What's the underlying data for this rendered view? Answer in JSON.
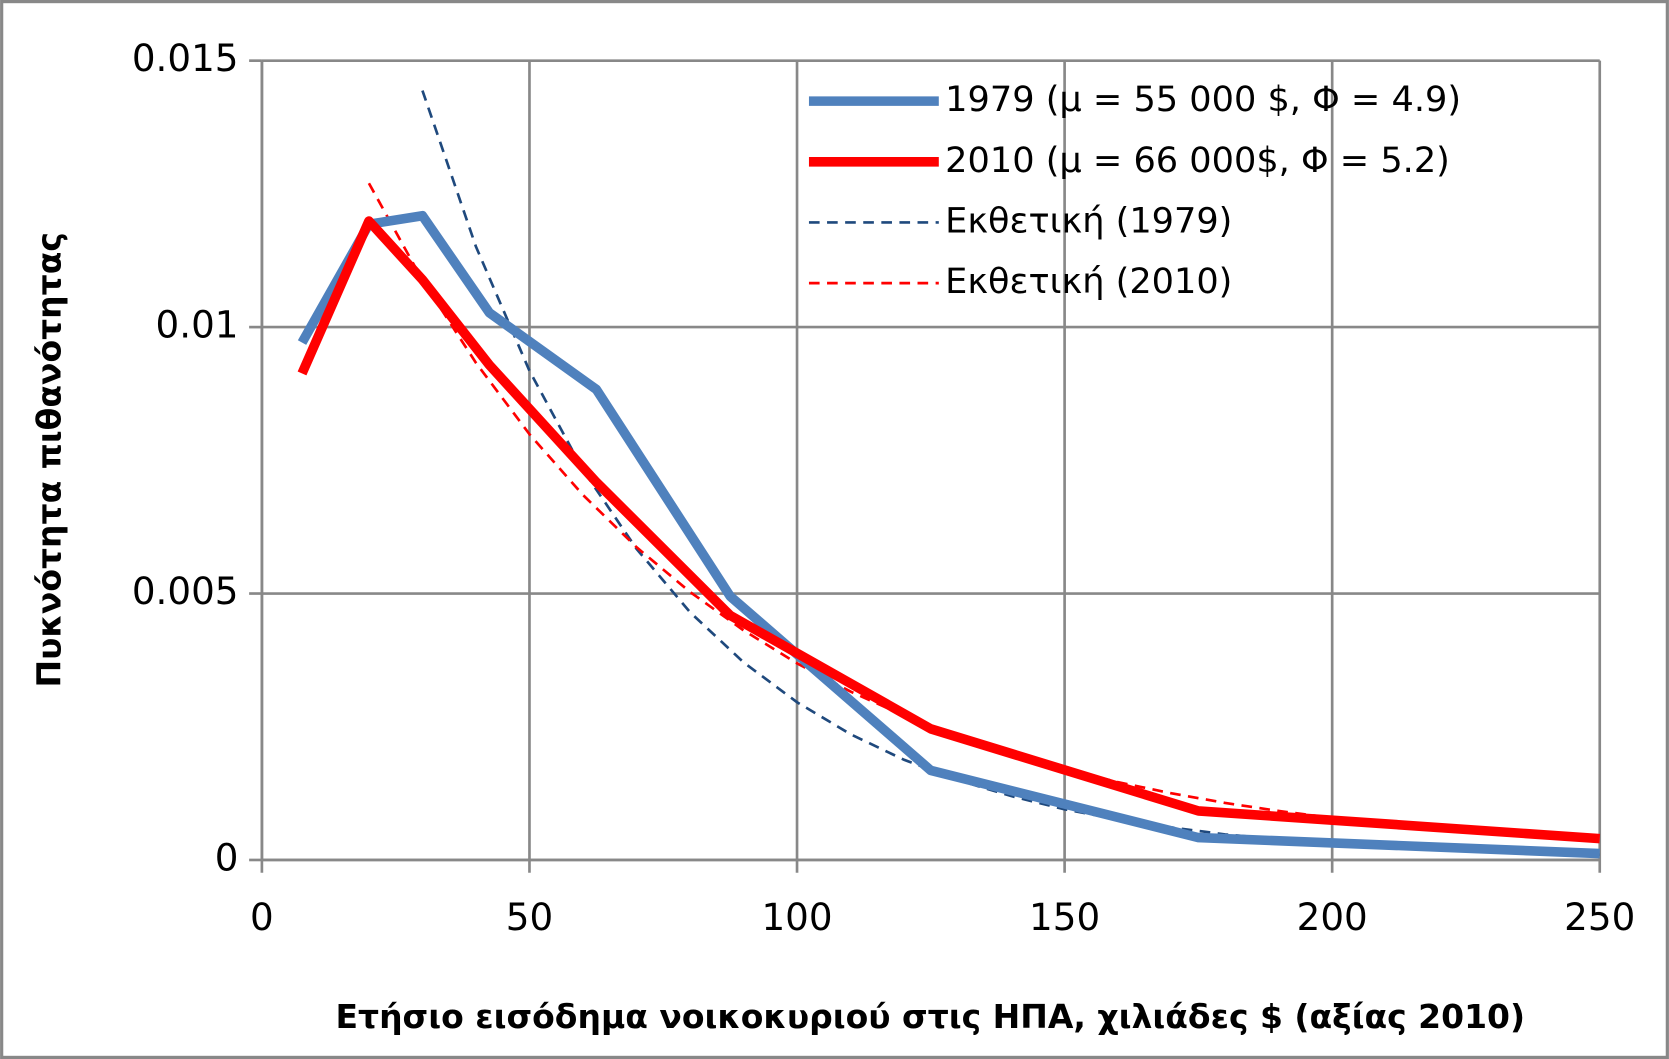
{
  "chart_data": {
    "type": "line",
    "xlabel": "Ετήσιο εισόδημα νοικοκυριού στις ΗΠΑ, χιλιάδες $ (αξίας 2010)",
    "ylabel": "Πυκνότητα πιθανότητας",
    "xlim": [
      0,
      250
    ],
    "xticks": [
      0,
      50,
      100,
      150,
      200,
      250
    ],
    "ylim": [
      0,
      0.015
    ],
    "yticks": [
      0,
      0.005,
      0.01,
      0.015
    ],
    "grid": true,
    "legend": "upper right",
    "series": [
      {
        "name": "1979 (μ = 55 000 $, Φ = 4.9)",
        "color": "#4f81bd",
        "dashed": false,
        "x": [
          7.5,
          20,
          30,
          42.5,
          62.5,
          87.5,
          125,
          175,
          250
        ],
        "values": [
          0.00971,
          0.01193,
          0.01209,
          0.01027,
          0.00883,
          0.00495,
          0.00168,
          0.00042,
          0.00012
        ]
      },
      {
        "name": "2010 (μ = 66 000$, Φ = 5.2)",
        "color": "#ff0000",
        "dashed": false,
        "x": [
          7.5,
          20,
          30,
          42.5,
          62.5,
          87.5,
          125,
          175,
          250
        ],
        "values": [
          0.00913,
          0.01199,
          0.01089,
          0.00929,
          0.00709,
          0.00459,
          0.00246,
          0.00092,
          0.0004
        ]
      },
      {
        "name": "Εκθετική (1979)",
        "color": "#1f497d",
        "dashed": true,
        "x": [
          30,
          40,
          50,
          60,
          70,
          80,
          90,
          100,
          110,
          120,
          130,
          140,
          150,
          160,
          170,
          180,
          190,
          200,
          210,
          220,
          230,
          240,
          250
        ],
        "values": [
          0.01444,
          0.01151,
          0.00918,
          0.00732,
          0.00584,
          0.00465,
          0.00371,
          0.00296,
          0.00236,
          0.00188,
          0.0015,
          0.0012,
          0.00095,
          0.00076,
          0.00061,
          0.00048,
          0.00039,
          0.00031,
          0.00025,
          0.0002,
          0.00016,
          0.00012,
          0.0001
        ]
      },
      {
        "name": "Εκθετική (2010)",
        "color": "#ff0000",
        "dashed": true,
        "x": [
          20,
          30,
          40,
          50,
          60,
          70,
          80,
          90,
          100,
          110,
          120,
          130,
          140,
          150,
          160,
          170,
          180,
          190,
          200,
          210,
          220,
          230,
          240,
          250
        ],
        "values": [
          0.0127,
          0.01088,
          0.00933,
          0.00799,
          0.00685,
          0.00587,
          0.00503,
          0.00431,
          0.00369,
          0.00316,
          0.00271,
          0.00232,
          0.00199,
          0.00171,
          0.00146,
          0.00125,
          0.00107,
          0.00092,
          0.00079,
          0.00068,
          0.00058,
          0.0005,
          0.00042,
          0.00036
        ]
      }
    ]
  }
}
